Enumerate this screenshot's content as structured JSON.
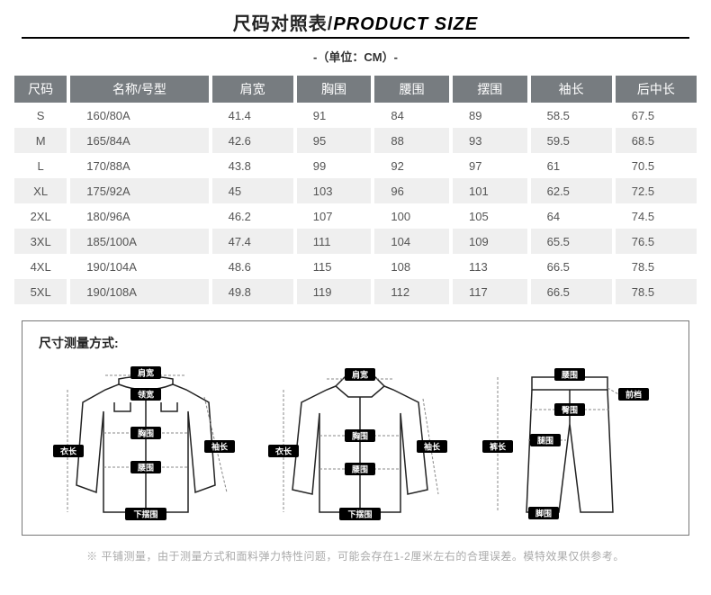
{
  "header": {
    "title_cn": "尺码对照表/",
    "title_en": "PRODUCT SIZE",
    "unit": "-（单位：CM）-"
  },
  "table": {
    "columns": [
      "尺码",
      "名称/号型",
      "肩宽",
      "胸围",
      "腰围",
      "摆围",
      "袖长",
      "后中长"
    ],
    "rows": [
      [
        "S",
        "160/80A",
        "41.4",
        "91",
        "84",
        "89",
        "58.5",
        "67.5"
      ],
      [
        "M",
        "165/84A",
        "42.6",
        "95",
        "88",
        "93",
        "59.5",
        "68.5"
      ],
      [
        "L",
        "170/88A",
        "43.8",
        "99",
        "92",
        "97",
        "61",
        "70.5"
      ],
      [
        "XL",
        "175/92A",
        "45",
        "103",
        "96",
        "101",
        "62.5",
        "72.5"
      ],
      [
        "2XL",
        "180/96A",
        "46.2",
        "107",
        "100",
        "105",
        "64",
        "74.5"
      ],
      [
        "3XL",
        "185/100A",
        "47.4",
        "111",
        "104",
        "109",
        "65.5",
        "76.5"
      ],
      [
        "4XL",
        "190/104A",
        "48.6",
        "115",
        "108",
        "113",
        "66.5",
        "78.5"
      ],
      [
        "5XL",
        "190/108A",
        "49.8",
        "119",
        "112",
        "117",
        "66.5",
        "78.5"
      ]
    ]
  },
  "diagram": {
    "title": "尺寸测量方式:",
    "jacket_labels": {
      "shoulder": "肩宽",
      "collar": "领宽",
      "chest": "胸围",
      "waist": "腰围",
      "hem": "下摆围",
      "length": "衣长",
      "sleeve": "袖长"
    },
    "shirt_labels": {
      "shoulder": "肩宽",
      "chest": "胸围",
      "waist": "腰围",
      "hem": "下摆围",
      "length": "衣长",
      "sleeve": "袖长"
    },
    "pants_labels": {
      "waist": "腰围",
      "hip": "臀围",
      "rise": "前档",
      "thigh": "腿围",
      "length": "裤长",
      "leg_open": "脚围"
    }
  },
  "footnote": "※ 平铺测量，由于测量方式和面料弹力特性问题，可能会存在1-2厘米左右的合理误差。模特效果仅供参考。",
  "style": {
    "header_bg": "#777c80",
    "header_fg": "#ffffff",
    "row_even_bg": "#efefef",
    "row_odd_bg": "#ffffff",
    "text_color": "#555555"
  }
}
